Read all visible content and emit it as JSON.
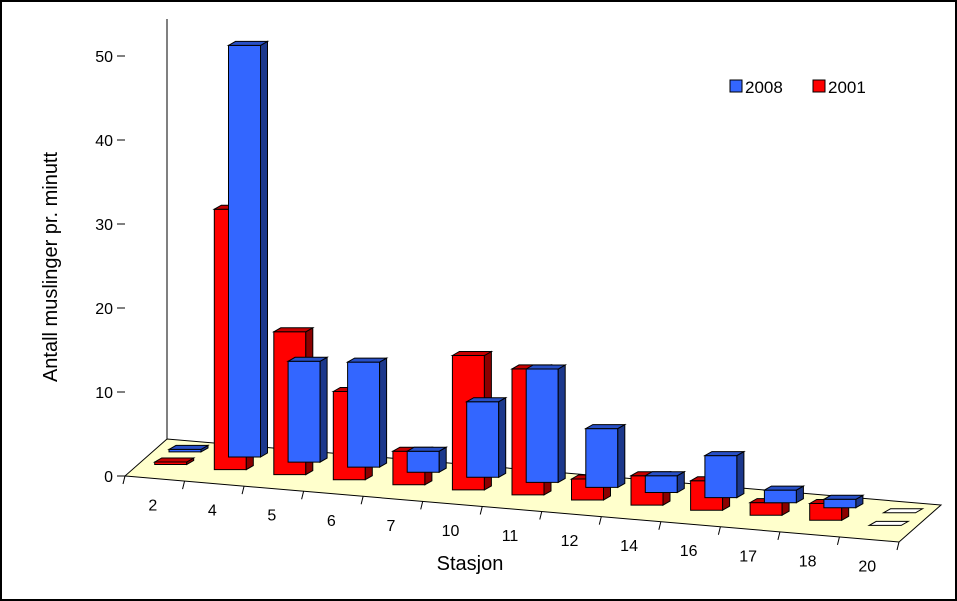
{
  "chart_data": {
    "type": "bar",
    "title": "",
    "xlabel": "Stasjon",
    "ylabel": "Antall muslinger pr. minutt",
    "ylim": [
      0,
      50
    ],
    "yticks": [
      0,
      10,
      20,
      30,
      40,
      50
    ],
    "categories": [
      "2",
      "4",
      "5",
      "6",
      "7",
      "10",
      "11",
      "12",
      "14",
      "16",
      "17",
      "18",
      "20"
    ],
    "series": [
      {
        "name": "2008",
        "color": "#3366FF",
        "values": [
          0.3,
          49,
          12,
          12.5,
          2.5,
          9,
          13.5,
          7,
          2,
          5,
          1.5,
          1,
          0
        ]
      },
      {
        "name": "2001",
        "color": "#FF0000",
        "values": [
          0.3,
          31,
          17,
          10.5,
          4,
          16,
          15,
          2.5,
          3.5,
          3.5,
          1.5,
          2,
          0
        ]
      }
    ],
    "legend_position": "top-right",
    "view": "3d",
    "grid": false
  }
}
